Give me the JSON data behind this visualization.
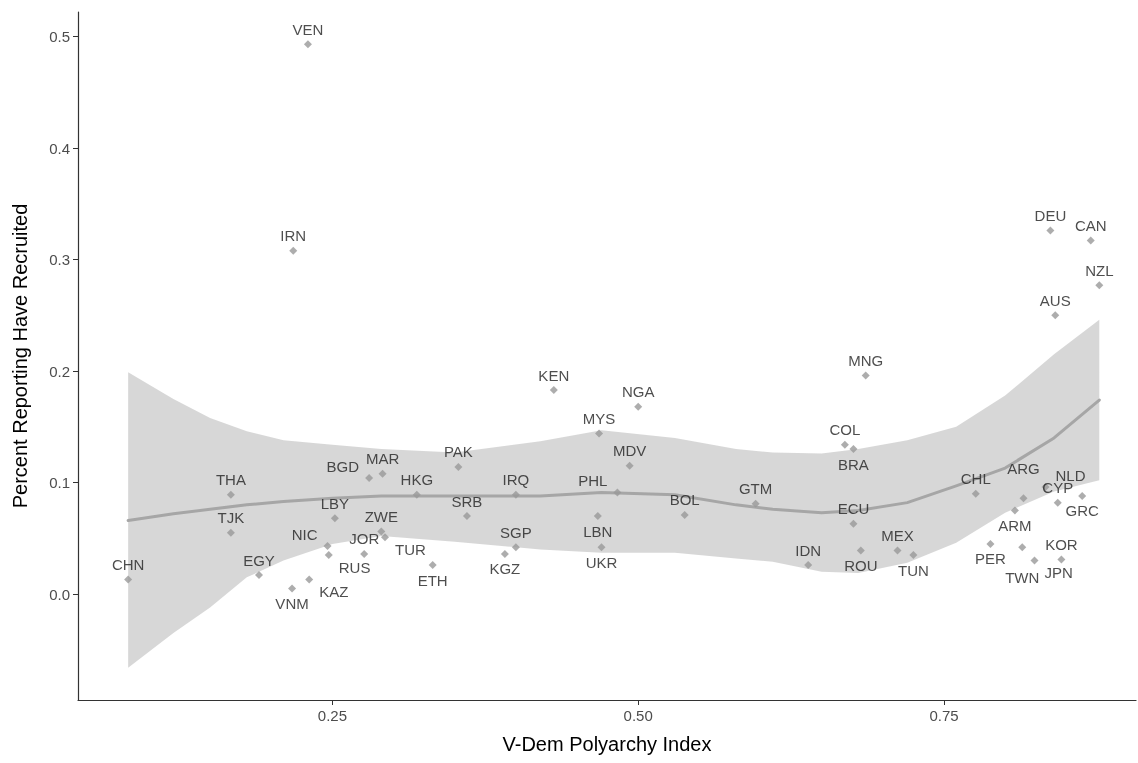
{
  "chart_data": {
    "type": "scatter",
    "xlabel": "V-Dem Polyarchy Index",
    "ylabel": "Percent Reporting Have Recruited",
    "xlim": [
      0.042,
      0.907
    ],
    "ylim": [
      -0.095,
      0.522
    ],
    "xticks": [
      0.25,
      {
        "value": 0.5,
        "label": "0.50"
      },
      0.75
    ],
    "yticks": [
      {
        "value": 0,
        "label": "0.0"
      },
      0.1,
      0.2,
      0.3,
      0.4,
      0.5
    ],
    "grid": false,
    "marker": "diamond",
    "series": [
      {
        "color": "#999999",
        "x": [
          0.23,
          0.218,
          0.083,
          0.167,
          0.167,
          0.19,
          0.217,
          0.231,
          0.246,
          0.247,
          0.252,
          0.28,
          0.291,
          0.29,
          0.293,
          0.276,
          0.332,
          0.319,
          0.431,
          0.5,
          0.468,
          0.353,
          0.493,
          0.4,
          0.483,
          0.36,
          0.4,
          0.391,
          0.467,
          0.47,
          0.538,
          0.596,
          0.639,
          0.837,
          0.87,
          0.877,
          0.841,
          0.686,
          0.669,
          0.676,
          0.676,
          0.682,
          0.712,
          0.725,
          0.776,
          0.815,
          0.833,
          0.808,
          0.788,
          0.814,
          0.824,
          0.846,
          0.863,
          0.843
        ],
        "values": [
          0.493,
          0.308,
          0.013,
          0.089,
          0.055,
          0.017,
          0.005,
          0.013,
          0.043,
          0.035,
          0.068,
          0.104,
          0.108,
          0.056,
          0.051,
          0.036,
          0.026,
          0.089,
          0.183,
          0.168,
          0.144,
          0.114,
          0.115,
          0.089,
          0.091,
          0.07,
          0.042,
          0.036,
          0.07,
          0.042,
          0.071,
          0.081,
          0.026,
          0.326,
          0.317,
          0.277,
          0.25,
          0.196,
          0.134,
          0.13,
          0.063,
          0.039,
          0.039,
          0.035,
          0.09,
          0.086,
          0.096,
          0.075,
          0.045,
          0.042,
          0.03,
          0.031,
          0.088,
          0.082
        ]
      },
      {
        "type": "line",
        "color": "#a6a6a6",
        "marker": "none",
        "x": [
          0.083,
          0.12,
          0.15,
          0.18,
          0.21,
          0.25,
          0.29,
          0.35,
          0.42,
          0.47,
          0.53,
          0.58,
          0.61,
          0.65,
          0.68,
          0.72,
          0.76,
          0.8,
          0.84,
          0.877
        ],
        "values": [
          0.066,
          0.072,
          0.076,
          0.08,
          0.083,
          0.086,
          0.088,
          0.088,
          0.088,
          0.091,
          0.089,
          0.08,
          0.076,
          0.073,
          0.075,
          0.082,
          0.097,
          0.113,
          0.14,
          0.174
        ],
        "upper": [
          0.199,
          0.175,
          0.158,
          0.146,
          0.138,
          0.134,
          0.13,
          0.127,
          0.137,
          0.147,
          0.14,
          0.13,
          0.127,
          0.126,
          0.13,
          0.138,
          0.15,
          0.178,
          0.215,
          0.246
        ],
        "lower": [
          -0.066,
          -0.035,
          -0.012,
          0.015,
          0.03,
          0.045,
          0.052,
          0.047,
          0.04,
          0.037,
          0.037,
          0.032,
          0.029,
          0.02,
          0.019,
          0.028,
          0.046,
          0.073,
          0.092,
          0.102
        ]
      }
    ],
    "annotations": [
      {
        "text": "VEN",
        "x": 0.23,
        "y": 0.493
      },
      {
        "text": "IRN",
        "x": 0.218,
        "y": 0.308
      },
      {
        "text": "CHN",
        "x": 0.083,
        "y": 0.013
      },
      {
        "text": "THA",
        "x": 0.167,
        "y": 0.089
      },
      {
        "text": "TJK",
        "x": 0.167,
        "y": 0.055
      },
      {
        "text": "EGY",
        "x": 0.19,
        "y": 0.017
      },
      {
        "text": "VNM",
        "x": 0.217,
        "y": 0.005
      },
      {
        "text": "KAZ",
        "x": 0.231,
        "y": 0.013
      },
      {
        "text": "NIC",
        "x": 0.246,
        "y": 0.043
      },
      {
        "text": "RUS",
        "x": 0.247,
        "y": 0.035
      },
      {
        "text": "LBY",
        "x": 0.252,
        "y": 0.068
      },
      {
        "text": "BGD",
        "x": 0.28,
        "y": 0.104
      },
      {
        "text": "MAR",
        "x": 0.291,
        "y": 0.108
      },
      {
        "text": "ZWE",
        "x": 0.29,
        "y": 0.056
      },
      {
        "text": "TUR",
        "x": 0.293,
        "y": 0.051
      },
      {
        "text": "JOR",
        "x": 0.276,
        "y": 0.036
      },
      {
        "text": "ETH",
        "x": 0.332,
        "y": 0.026
      },
      {
        "text": "HKG",
        "x": 0.319,
        "y": 0.089
      },
      {
        "text": "KEN",
        "x": 0.431,
        "y": 0.183
      },
      {
        "text": "NGA",
        "x": 0.5,
        "y": 0.168
      },
      {
        "text": "MYS",
        "x": 0.468,
        "y": 0.144
      },
      {
        "text": "PAK",
        "x": 0.353,
        "y": 0.114
      },
      {
        "text": "MDV",
        "x": 0.493,
        "y": 0.115
      },
      {
        "text": "IRQ",
        "x": 0.4,
        "y": 0.089
      },
      {
        "text": "PHL",
        "x": 0.483,
        "y": 0.091
      },
      {
        "text": "SRB",
        "x": 0.36,
        "y": 0.07
      },
      {
        "text": "SGP",
        "x": 0.4,
        "y": 0.042
      },
      {
        "text": "KGZ",
        "x": 0.391,
        "y": 0.036
      },
      {
        "text": "LBN",
        "x": 0.467,
        "y": 0.07
      },
      {
        "text": "UKR",
        "x": 0.47,
        "y": 0.042
      },
      {
        "text": "BOL",
        "x": 0.538,
        "y": 0.071
      },
      {
        "text": "GTM",
        "x": 0.596,
        "y": 0.081
      },
      {
        "text": "IDN",
        "x": 0.639,
        "y": 0.026
      },
      {
        "text": "DEU",
        "x": 0.837,
        "y": 0.326
      },
      {
        "text": "CAN",
        "x": 0.87,
        "y": 0.317
      },
      {
        "text": "NZL",
        "x": 0.877,
        "y": 0.277
      },
      {
        "text": "AUS",
        "x": 0.841,
        "y": 0.25
      },
      {
        "text": "MNG",
        "x": 0.686,
        "y": 0.196
      },
      {
        "text": "COL",
        "x": 0.669,
        "y": 0.134
      },
      {
        "text": "BRA",
        "x": 0.676,
        "y": 0.13
      },
      {
        "text": "ECU",
        "x": 0.676,
        "y": 0.063
      },
      {
        "text": "ROU",
        "x": 0.682,
        "y": 0.039
      },
      {
        "text": "MEX",
        "x": 0.712,
        "y": 0.039
      },
      {
        "text": "TUN",
        "x": 0.725,
        "y": 0.035
      },
      {
        "text": "CHL",
        "x": 0.776,
        "y": 0.09
      },
      {
        "text": "ARG",
        "x": 0.815,
        "y": 0.086
      },
      {
        "text": "NLD",
        "x": 0.833,
        "y": 0.096
      },
      {
        "text": "ARM",
        "x": 0.808,
        "y": 0.075
      },
      {
        "text": "PER",
        "x": 0.788,
        "y": 0.045
      },
      {
        "text": "TWN",
        "x": 0.814,
        "y": 0.042
      },
      {
        "text": "JPN",
        "x": 0.824,
        "y": 0.03
      },
      {
        "text": "KOR",
        "x": 0.846,
        "y": 0.031
      },
      {
        "text": "GRC",
        "x": 0.863,
        "y": 0.088
      },
      {
        "text": "CYP",
        "x": 0.843,
        "y": 0.082
      }
    ]
  }
}
